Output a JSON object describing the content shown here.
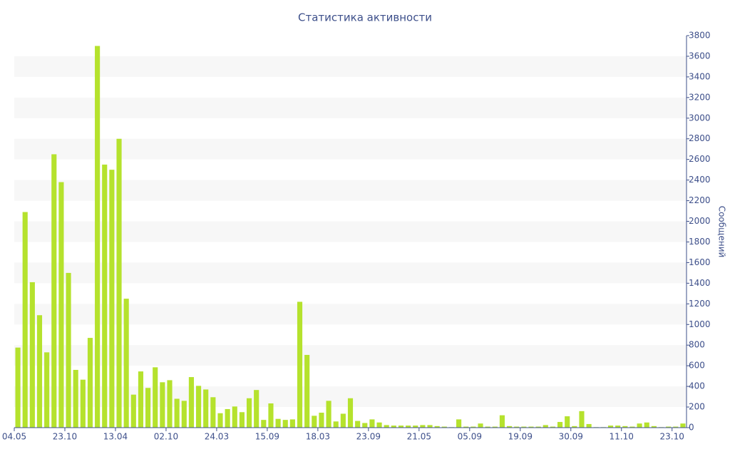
{
  "chart_data": {
    "type": "bar",
    "title": "Статистика активности",
    "y_label": "Сообщений",
    "categories": [
      "04.05",
      null,
      null,
      null,
      null,
      null,
      null,
      "23.10",
      null,
      null,
      null,
      null,
      null,
      null,
      "13.04",
      null,
      null,
      null,
      null,
      null,
      null,
      "02.10",
      null,
      null,
      null,
      null,
      null,
      null,
      "24.03",
      null,
      null,
      null,
      null,
      null,
      null,
      "15.09",
      null,
      null,
      null,
      null,
      null,
      null,
      "18.03",
      null,
      null,
      null,
      null,
      null,
      null,
      "23.09",
      null,
      null,
      null,
      null,
      null,
      null,
      "21.05",
      null,
      null,
      null,
      null,
      null,
      null,
      "05.09",
      null,
      null,
      null,
      null,
      null,
      null,
      "19.09",
      null,
      null,
      null,
      null,
      null,
      null,
      "30.09",
      null,
      null,
      null,
      null,
      null,
      null,
      "11.10",
      null,
      null,
      null,
      null,
      null,
      null,
      "23.10",
      null
    ],
    "values": [
      776,
      2090,
      1410,
      1090,
      730,
      2650,
      2380,
      1500,
      560,
      465,
      870,
      3700,
      2550,
      2500,
      2800,
      1250,
      320,
      545,
      385,
      585,
      440,
      460,
      280,
      260,
      490,
      405,
      370,
      295,
      140,
      180,
      205,
      150,
      285,
      365,
      75,
      235,
      85,
      75,
      80,
      1220,
      705,
      115,
      145,
      260,
      60,
      135,
      285,
      65,
      45,
      80,
      50,
      25,
      20,
      20,
      20,
      20,
      25,
      25,
      15,
      10,
      5,
      80,
      10,
      10,
      40,
      10,
      10,
      120,
      15,
      10,
      10,
      10,
      10,
      25,
      10,
      55,
      110,
      15,
      160,
      35,
      5,
      5,
      20,
      20,
      15,
      10,
      40,
      50,
      15,
      5,
      10,
      10,
      40
    ],
    "color": "#b5e22d",
    "ylim": [
      0,
      3800
    ],
    "yticks": [
      0,
      200,
      400,
      600,
      800,
      1000,
      1200,
      1400,
      1600,
      1800,
      2000,
      2200,
      2400,
      2600,
      2800,
      3000,
      3200,
      3400,
      3600,
      3800
    ],
    "grid": true,
    "y_axis_side": "right"
  }
}
